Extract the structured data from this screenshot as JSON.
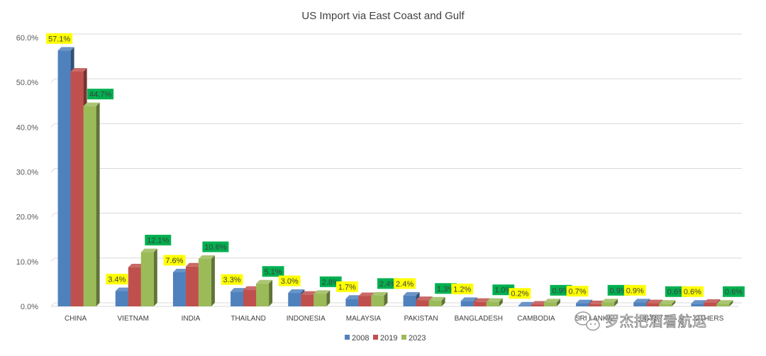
{
  "chart_data": {
    "type": "bar",
    "title": "US Import via East Coast and Gulf",
    "categories": [
      "CHINA",
      "VIETNAM",
      "INDIA",
      "THAILAND",
      "INDONESIA",
      "MALAYSIA",
      "PAKISTAN",
      "BANGLADESH",
      "CAMBODIA",
      "SRI LANKA",
      "EGYPT",
      "OTHERS"
    ],
    "series": [
      {
        "name": "2008",
        "color": "#4f81bd",
        "values": [
          57.1,
          3.4,
          7.6,
          3.3,
          3.0,
          1.7,
          2.4,
          1.2,
          0.2,
          0.7,
          0.9,
          0.6
        ],
        "labels_shown": true,
        "label_bg": "#ffff00"
      },
      {
        "name": "2019",
        "color": "#c0504d",
        "values": [
          52.4,
          8.7,
          8.9,
          3.7,
          2.6,
          2.3,
          1.4,
          1.0,
          0.4,
          0.5,
          0.7,
          0.8
        ],
        "labels_shown": false
      },
      {
        "name": "2023",
        "color": "#9bbb59",
        "values": [
          44.7,
          12.1,
          10.6,
          5.1,
          2.8,
          2.4,
          1.3,
          1.0,
          0.9,
          0.9,
          0.6,
          0.6
        ],
        "labels_shown": true,
        "label_bg": "#00b050"
      }
    ],
    "ylim": [
      0,
      60
    ],
    "yticks": [
      "0.0%",
      "10.0%",
      "20.0%",
      "30.0%",
      "40.0%",
      "50.0%",
      "60.0%"
    ],
    "value_format": "percent",
    "grid": true,
    "legend_position": "bottom",
    "style": "3d-clustered-column"
  },
  "watermark": {
    "text": "罗杰把酒看航运",
    "icon": "wechat-icon"
  }
}
